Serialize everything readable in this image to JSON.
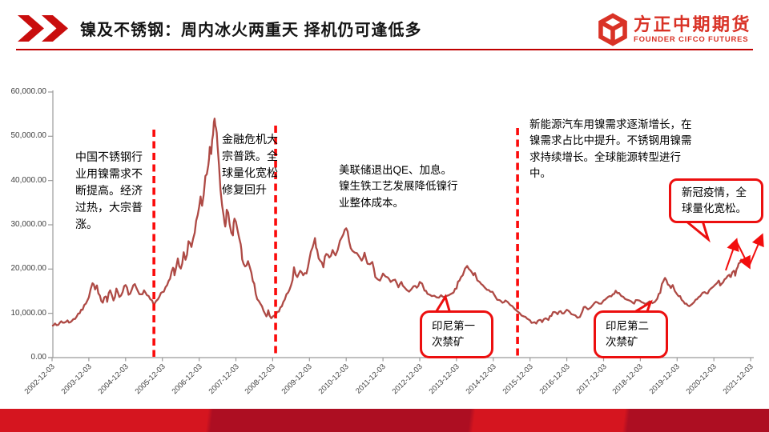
{
  "header": {
    "title": "镍及不锈钢：周内冰火两重天 择机仍可逢低多",
    "logo_cn": "方正中期期货",
    "logo_en": "FOUNDER CIFCO FUTURES"
  },
  "colors": {
    "brand_red": "#d93226",
    "chevron_red": "#c90d0d",
    "rule_red": "#c00000",
    "price_line": "#ae4a45",
    "event_red": "#fb0b0b",
    "callout_border": "#ec0f0f",
    "footer_bright": "#d5151f",
    "footer_dark": "#ad0e22"
  },
  "annotations": [
    {
      "id": "china-demand",
      "lines": [
        "中国不锈钢行",
        "业用镍需求不",
        "断提高。经济",
        "过热，大宗普",
        "涨。"
      ]
    },
    {
      "id": "financial-crisis",
      "lines": [
        "金融危机大",
        "宗普跌。全",
        "球量化宽松",
        "修复回升"
      ]
    },
    {
      "id": "fed-qe",
      "lines": [
        "美联储退出QE、加息。",
        "镍生铁工艺发展降低镍行",
        "业整体成本。"
      ]
    },
    {
      "id": "new-energy",
      "lines": [
        "新能源汽车用镍需求逐渐增长，在",
        "镍需求占比中提升。不锈钢用镍需",
        "求持续增长。全球能源转型进行",
        "中。"
      ]
    }
  ],
  "callouts": [
    {
      "id": "indonesia-ban-1",
      "lines": [
        "印尼第一",
        "次禁矿"
      ]
    },
    {
      "id": "indonesia-ban-2",
      "lines": [
        "印尼第二",
        "次禁矿"
      ]
    },
    {
      "id": "covid",
      "lines": [
        "新冠疫情，全",
        "球量化宽松。"
      ]
    }
  ],
  "chart_data": {
    "type": "line",
    "title": "",
    "xlabel": "",
    "ylabel": "",
    "ylim": [
      0,
      60000
    ],
    "grid": false,
    "legend": "none",
    "y_tick_labels": [
      "60,000.00",
      "50,000.00",
      "40,000.00",
      "30,000.00",
      "20,000.00",
      "10,000.00",
      "0.00"
    ],
    "x_tick_labels": [
      "2002-12-03",
      "2003-12-03",
      "2004-12-03",
      "2005-12-03",
      "2006-12-03",
      "2007-12-03",
      "2008-12-03",
      "2009-12-03",
      "2010-12-03",
      "2011-12-03",
      "2012-12-03",
      "2013-12-03",
      "2014-12-03",
      "2015-12-03",
      "2016-12-03",
      "2017-12-03",
      "2018-12-03",
      "2019-12-03",
      "2020-12-03",
      "2021-12-03"
    ],
    "x_unit": "years since 2002-12-03",
    "era_dividers": [
      {
        "t": 2.77
      },
      {
        "t": 6.08
      },
      {
        "t": 12.66
      }
    ],
    "series": [
      {
        "name": "price",
        "color": "#ae4a45",
        "points": [
          [
            0,
            7200
          ],
          [
            0.08,
            7700
          ],
          [
            0.17,
            7400
          ],
          [
            0.25,
            8200
          ],
          [
            0.33,
            7900
          ],
          [
            0.42,
            8400
          ],
          [
            0.5,
            8000
          ],
          [
            0.58,
            8700
          ],
          [
            0.67,
            9300
          ],
          [
            0.75,
            10000
          ],
          [
            0.83,
            10800
          ],
          [
            0.92,
            12200
          ],
          [
            1.0,
            13600
          ],
          [
            1.1,
            16800
          ],
          [
            1.17,
            15400
          ],
          [
            1.22,
            16300
          ],
          [
            1.3,
            14000
          ],
          [
            1.38,
            12400
          ],
          [
            1.46,
            13800
          ],
          [
            1.5,
            12600
          ],
          [
            1.58,
            15200
          ],
          [
            1.67,
            12900
          ],
          [
            1.75,
            15600
          ],
          [
            1.83,
            13700
          ],
          [
            1.92,
            14800
          ],
          [
            2.0,
            16400
          ],
          [
            2.08,
            14200
          ],
          [
            2.17,
            15400
          ],
          [
            2.25,
            16600
          ],
          [
            2.33,
            15100
          ],
          [
            2.42,
            14300
          ],
          [
            2.5,
            15200
          ],
          [
            2.58,
            14100
          ],
          [
            2.67,
            13200
          ],
          [
            2.77,
            11900
          ],
          [
            2.88,
            13200
          ],
          [
            2.96,
            14600
          ],
          [
            3.04,
            14900
          ],
          [
            3.13,
            16400
          ],
          [
            3.21,
            17800
          ],
          [
            3.29,
            20300
          ],
          [
            3.33,
            18600
          ],
          [
            3.42,
            22400
          ],
          [
            3.5,
            20100
          ],
          [
            3.58,
            23800
          ],
          [
            3.63,
            22100
          ],
          [
            3.71,
            26300
          ],
          [
            3.79,
            25000
          ],
          [
            3.88,
            28200
          ],
          [
            3.96,
            32200
          ],
          [
            4.04,
            36400
          ],
          [
            4.08,
            34300
          ],
          [
            4.17,
            41000
          ],
          [
            4.25,
            43500
          ],
          [
            4.29,
            47600
          ],
          [
            4.33,
            46000
          ],
          [
            4.38,
            50400
          ],
          [
            4.42,
            54000
          ],
          [
            4.46,
            51800
          ],
          [
            4.5,
            48000
          ],
          [
            4.58,
            38000
          ],
          [
            4.67,
            31800
          ],
          [
            4.71,
            29600
          ],
          [
            4.75,
            33400
          ],
          [
            4.83,
            30100
          ],
          [
            4.92,
            27600
          ],
          [
            4.96,
            31400
          ],
          [
            5.04,
            29000
          ],
          [
            5.13,
            25600
          ],
          [
            5.17,
            22200
          ],
          [
            5.25,
            20600
          ],
          [
            5.33,
            21800
          ],
          [
            5.42,
            19200
          ],
          [
            5.5,
            16700
          ],
          [
            5.58,
            13200
          ],
          [
            5.67,
            12100
          ],
          [
            5.75,
            10600
          ],
          [
            5.83,
            9300
          ],
          [
            5.88,
            10700
          ],
          [
            5.96,
            8900
          ],
          [
            6.08,
            9600
          ],
          [
            6.17,
            10400
          ],
          [
            6.25,
            11600
          ],
          [
            6.33,
            13100
          ],
          [
            6.42,
            14700
          ],
          [
            6.5,
            16300
          ],
          [
            6.58,
            20400
          ],
          [
            6.67,
            18200
          ],
          [
            6.75,
            19600
          ],
          [
            6.83,
            18600
          ],
          [
            6.92,
            19000
          ],
          [
            7.0,
            22300
          ],
          [
            7.08,
            24800
          ],
          [
            7.15,
            27000
          ],
          [
            7.21,
            24300
          ],
          [
            7.29,
            21900
          ],
          [
            7.38,
            20400
          ],
          [
            7.46,
            23400
          ],
          [
            7.54,
            22600
          ],
          [
            7.63,
            24300
          ],
          [
            7.71,
            23100
          ],
          [
            7.83,
            26400
          ],
          [
            7.92,
            27800
          ],
          [
            8.0,
            29200
          ],
          [
            8.08,
            26200
          ],
          [
            8.17,
            24100
          ],
          [
            8.29,
            23600
          ],
          [
            8.42,
            21900
          ],
          [
            8.5,
            23700
          ],
          [
            8.58,
            21200
          ],
          [
            8.71,
            21600
          ],
          [
            8.79,
            18200
          ],
          [
            8.92,
            17400
          ],
          [
            9.0,
            19000
          ],
          [
            9.13,
            18100
          ],
          [
            9.21,
            17100
          ],
          [
            9.33,
            17600
          ],
          [
            9.42,
            15900
          ],
          [
            9.5,
            17100
          ],
          [
            9.58,
            15900
          ],
          [
            9.71,
            14900
          ],
          [
            9.83,
            16100
          ],
          [
            9.92,
            15800
          ],
          [
            10.0,
            17100
          ],
          [
            10.13,
            15100
          ],
          [
            10.21,
            14400
          ],
          [
            10.33,
            13900
          ],
          [
            10.46,
            13600
          ],
          [
            10.58,
            14100
          ],
          [
            10.67,
            13700
          ],
          [
            10.79,
            14100
          ],
          [
            10.92,
            14700
          ],
          [
            11.0,
            15600
          ],
          [
            11.08,
            17400
          ],
          [
            11.17,
            18600
          ],
          [
            11.29,
            20700
          ],
          [
            11.38,
            19700
          ],
          [
            11.46,
            18600
          ],
          [
            11.5,
            19100
          ],
          [
            11.63,
            17100
          ],
          [
            11.71,
            16400
          ],
          [
            11.83,
            15300
          ],
          [
            11.92,
            14900
          ],
          [
            12.04,
            14000
          ],
          [
            12.17,
            13000
          ],
          [
            12.25,
            12400
          ],
          [
            12.33,
            12900
          ],
          [
            12.46,
            11900
          ],
          [
            12.58,
            11000
          ],
          [
            12.71,
            10100
          ],
          [
            12.83,
            9300
          ],
          [
            12.92,
            8800
          ],
          [
            13.0,
            8400
          ],
          [
            13.08,
            7900
          ],
          [
            13.17,
            7700
          ],
          [
            13.25,
            8500
          ],
          [
            13.33,
            8000
          ],
          [
            13.42,
            8900
          ],
          [
            13.5,
            8500
          ],
          [
            13.58,
            9400
          ],
          [
            13.67,
            10300
          ],
          [
            13.75,
            9800
          ],
          [
            13.83,
            10500
          ],
          [
            13.92,
            10000
          ],
          [
            14.0,
            10800
          ],
          [
            14.08,
            10300
          ],
          [
            14.17,
            9700
          ],
          [
            14.29,
            9000
          ],
          [
            14.42,
            10400
          ],
          [
            14.5,
            11500
          ],
          [
            14.58,
            10900
          ],
          [
            14.71,
            11900
          ],
          [
            14.79,
            12600
          ],
          [
            14.88,
            12200
          ],
          [
            15.0,
            12900
          ],
          [
            15.08,
            13400
          ],
          [
            15.17,
            13900
          ],
          [
            15.25,
            14300
          ],
          [
            15.33,
            15100
          ],
          [
            15.42,
            14600
          ],
          [
            15.54,
            13700
          ],
          [
            15.63,
            13100
          ],
          [
            15.75,
            12700
          ],
          [
            15.83,
            12200
          ],
          [
            15.92,
            13000
          ],
          [
            16.04,
            12500
          ],
          [
            16.13,
            12100
          ],
          [
            16.25,
            12700
          ],
          [
            16.33,
            12300
          ],
          [
            16.46,
            13300
          ],
          [
            16.54,
            14600
          ],
          [
            16.63,
            17300
          ],
          [
            16.67,
            18000
          ],
          [
            16.75,
            16500
          ],
          [
            16.83,
            15700
          ],
          [
            16.88,
            16400
          ],
          [
            17.0,
            14300
          ],
          [
            17.08,
            13900
          ],
          [
            17.17,
            12700
          ],
          [
            17.25,
            12200
          ],
          [
            17.33,
            11600
          ],
          [
            17.46,
            12500
          ],
          [
            17.54,
            13200
          ],
          [
            17.63,
            13900
          ],
          [
            17.75,
            14800
          ],
          [
            17.83,
            14500
          ],
          [
            17.92,
            15600
          ],
          [
            18.04,
            16500
          ],
          [
            18.13,
            17400
          ],
          [
            18.17,
            16300
          ],
          [
            18.25,
            17000
          ],
          [
            18.33,
            17900
          ],
          [
            18.42,
            18700
          ],
          [
            18.46,
            18200
          ],
          [
            18.54,
            19600
          ],
          [
            18.58,
            18500
          ],
          [
            18.65,
            20500
          ],
          [
            18.7,
            21400
          ],
          [
            18.75,
            22300
          ]
        ]
      }
    ]
  }
}
